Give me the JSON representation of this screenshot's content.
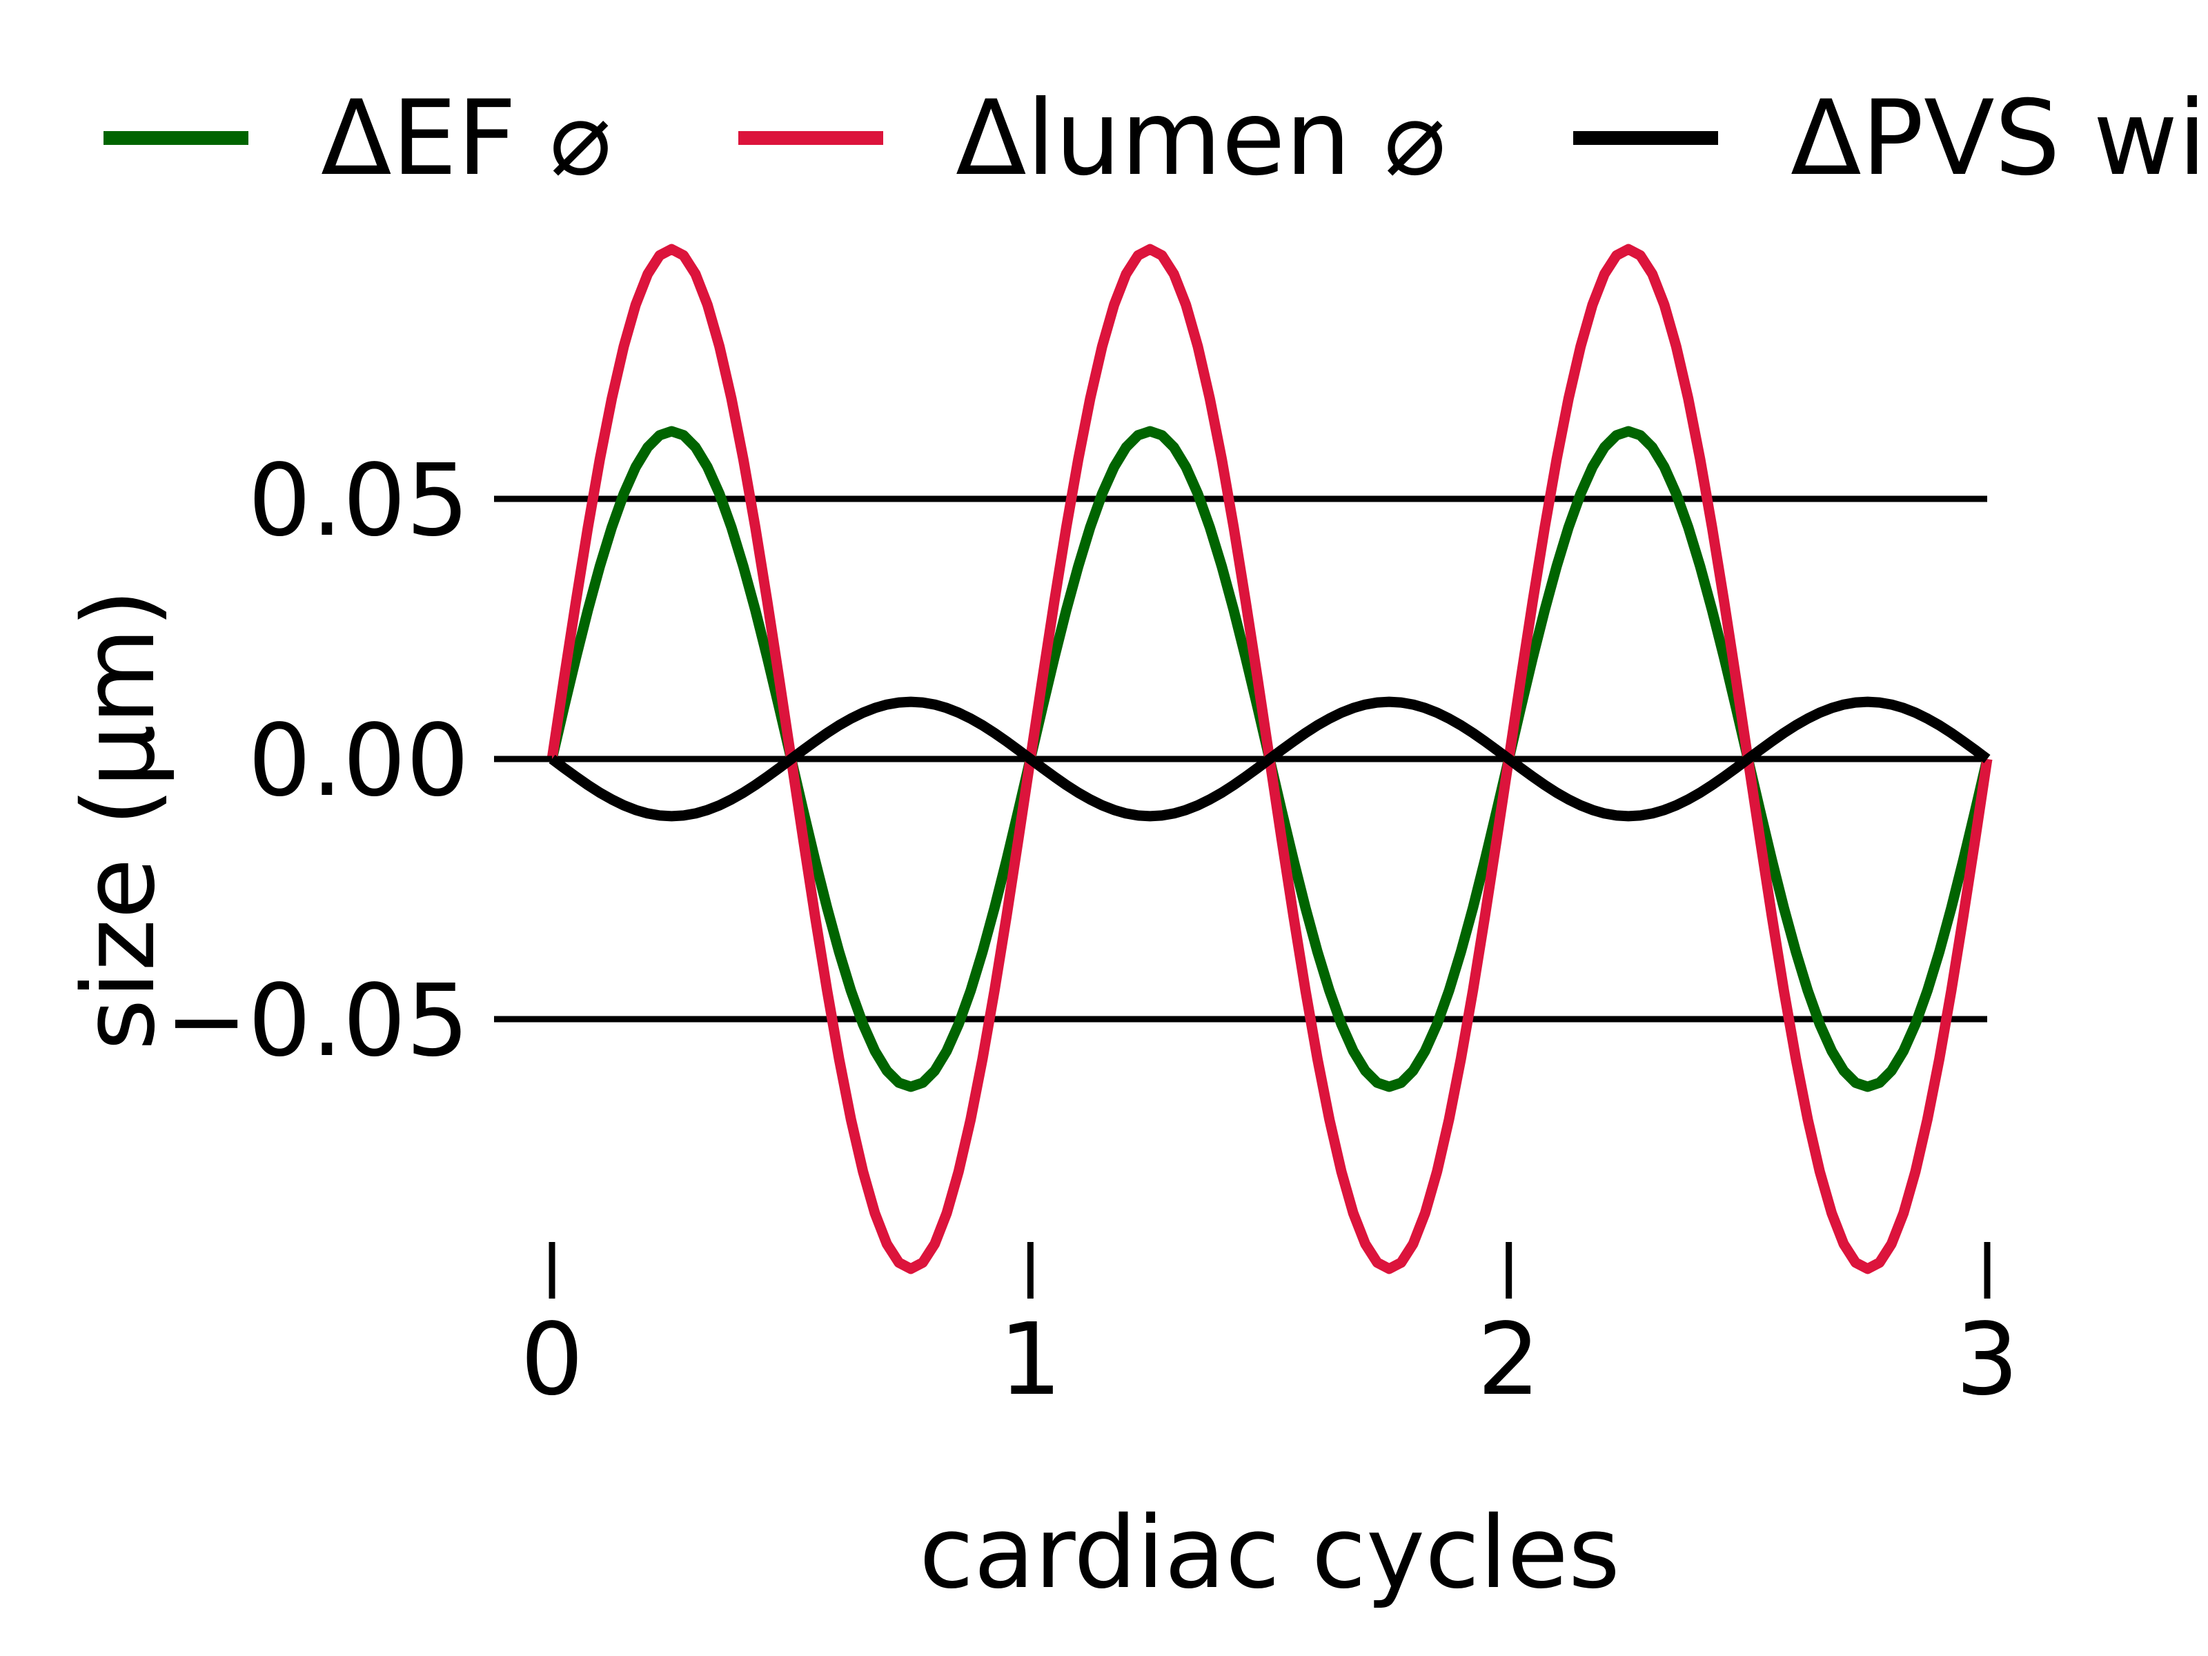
{
  "chart_data": {
    "type": "line",
    "title": "",
    "xlabel": "cardiac cycles",
    "ylabel": "size (μm)",
    "xlim": [
      0,
      3
    ],
    "ylim": [
      -0.095,
      0.1
    ],
    "xticks": [
      0,
      1,
      2,
      3
    ],
    "xtick_labels": [
      "0",
      "1",
      "2",
      "3"
    ],
    "yticks": [
      0.05,
      0.0,
      -0.05
    ],
    "ytick_labels": [
      "0.05",
      "0.00",
      "−0.05"
    ],
    "gridlines_y": [
      0.05,
      0.0,
      -0.05
    ],
    "legend_position": "top",
    "series": [
      {
        "name": "ΔEF ⌀",
        "color": "#006400",
        "amplitude": 0.063,
        "period": 1,
        "phase_sign": 1,
        "samples": 120
      },
      {
        "name": "Δlumen ⌀",
        "color": "#dc143c",
        "amplitude": 0.098,
        "period": 1,
        "phase_sign": 1,
        "samples": 120
      },
      {
        "name": "ΔPVS width",
        "color": "#000000",
        "amplitude": 0.011,
        "period": 1,
        "phase_sign": -1,
        "samples": 120
      }
    ]
  }
}
